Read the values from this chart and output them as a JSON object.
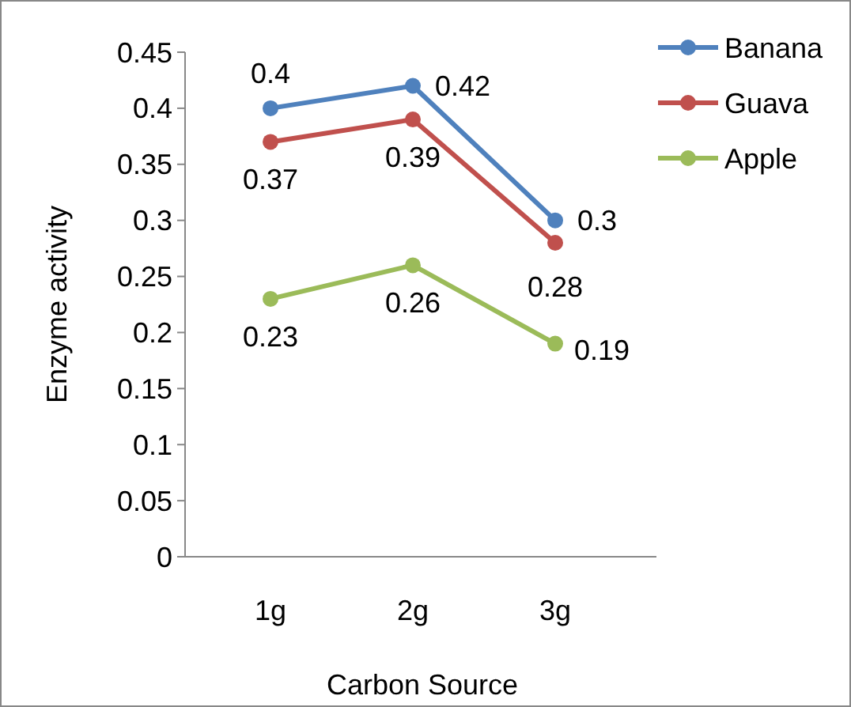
{
  "chart_data": {
    "type": "line",
    "xlabel": "Carbon Source",
    "ylabel": "Enzyme activity",
    "categories": [
      "1g",
      "2g",
      "3g"
    ],
    "series": [
      {
        "name": "Banana",
        "color": "#4f81bd",
        "values": [
          0.4,
          0.42,
          0.3
        ]
      },
      {
        "name": "Guava",
        "color": "#c0504d",
        "values": [
          0.37,
          0.39,
          0.28
        ]
      },
      {
        "name": "Apple",
        "color": "#9bbb59",
        "values": [
          0.23,
          0.26,
          0.19
        ]
      }
    ],
    "ylim": [
      0,
      0.45
    ],
    "yticks": [
      0,
      0.05,
      0.1,
      0.15,
      0.2,
      0.25,
      0.3,
      0.35,
      0.4,
      0.45
    ],
    "grid": false,
    "legend": "top right",
    "marker": "circle",
    "line_style": "solid",
    "data_labels": true
  }
}
